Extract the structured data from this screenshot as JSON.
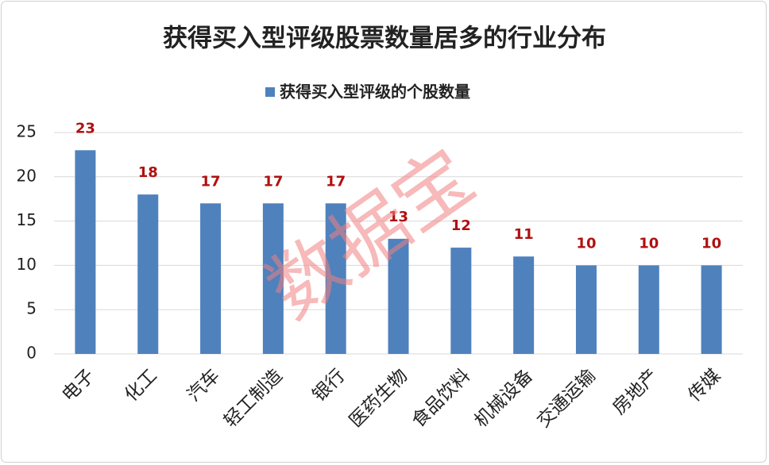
{
  "chart_data": {
    "type": "bar",
    "title": "获得买入型评级股票数量居多的行业分布",
    "watermark": "数据宝",
    "categories": [
      "电子",
      "化工",
      "汽车",
      "轻工制造",
      "银行",
      "医药生物",
      "食品饮料",
      "机械设备",
      "交通运输",
      "房地产",
      "传媒"
    ],
    "series": [
      {
        "name": "获得买入型评级的个股数量",
        "color": "#4f81bd",
        "values": [
          23,
          18,
          17,
          17,
          17,
          13,
          12,
          11,
          10,
          10,
          10
        ]
      }
    ],
    "ylim": [
      0,
      25
    ],
    "yticks": [
      0,
      5,
      10,
      15,
      20,
      25
    ],
    "grid": true,
    "legend": "top"
  }
}
